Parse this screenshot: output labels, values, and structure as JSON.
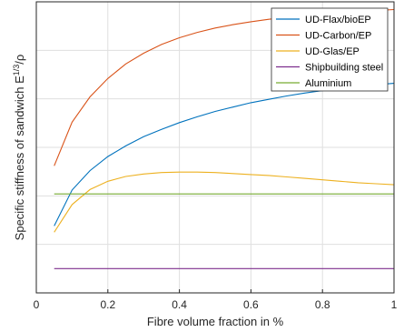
{
  "chart_data": {
    "type": "line",
    "xlabel": "Fibre volume fraction in %",
    "ylabel_main": "Specific stiffness of sandwich E",
    "ylabel_sup": "1/3",
    "ylabel_tail": "/ρ",
    "xlim": [
      0,
      1
    ],
    "ylim": [
      0,
      6
    ],
    "x_ticks": [
      "0",
      "0.2",
      "0.4",
      "0.6",
      "0.8",
      "1"
    ],
    "x_tick_values": [
      0,
      0.2,
      0.4,
      0.6,
      0.8,
      1
    ],
    "y_gridlines": [
      1,
      2,
      3,
      4,
      5
    ],
    "grid": true,
    "legend_position": "top-right",
    "x": [
      0.05,
      0.1,
      0.15,
      0.2,
      0.25,
      0.3,
      0.35,
      0.4,
      0.45,
      0.5,
      0.55,
      0.6,
      0.65,
      0.7,
      0.75,
      0.8,
      0.85,
      0.9,
      0.95,
      1.0
    ],
    "series": [
      {
        "name": "UD-Flax/bioEP",
        "color": "#0072BD",
        "values": [
          1.38,
          2.12,
          2.52,
          2.81,
          3.03,
          3.22,
          3.37,
          3.51,
          3.63,
          3.74,
          3.83,
          3.92,
          3.99,
          4.06,
          4.12,
          4.17,
          4.22,
          4.26,
          4.29,
          4.32
        ]
      },
      {
        "name": "UD-Carbon/EP",
        "color": "#D95319",
        "values": [
          2.62,
          3.52,
          4.04,
          4.42,
          4.72,
          4.94,
          5.12,
          5.26,
          5.37,
          5.46,
          5.53,
          5.59,
          5.64,
          5.68,
          5.72,
          5.75,
          5.78,
          5.8,
          5.82,
          5.84
        ]
      },
      {
        "name": "UD-Glas/EP",
        "color": "#EDB120",
        "values": [
          1.25,
          1.82,
          2.13,
          2.3,
          2.4,
          2.45,
          2.48,
          2.49,
          2.49,
          2.48,
          2.46,
          2.44,
          2.42,
          2.39,
          2.36,
          2.33,
          2.3,
          2.27,
          2.25,
          2.23
        ]
      },
      {
        "name": "Shipbuilding steel",
        "color": "#7E2F8E",
        "values": [
          0.5,
          0.5,
          0.5,
          0.5,
          0.5,
          0.5,
          0.5,
          0.5,
          0.5,
          0.5,
          0.5,
          0.5,
          0.5,
          0.5,
          0.5,
          0.5,
          0.5,
          0.5,
          0.5,
          0.5
        ]
      },
      {
        "name": "Aluminium",
        "color": "#77AC30",
        "values": [
          2.04,
          2.04,
          2.04,
          2.04,
          2.04,
          2.04,
          2.04,
          2.04,
          2.04,
          2.04,
          2.04,
          2.04,
          2.04,
          2.04,
          2.04,
          2.04,
          2.04,
          2.04,
          2.04,
          2.04
        ]
      }
    ]
  }
}
